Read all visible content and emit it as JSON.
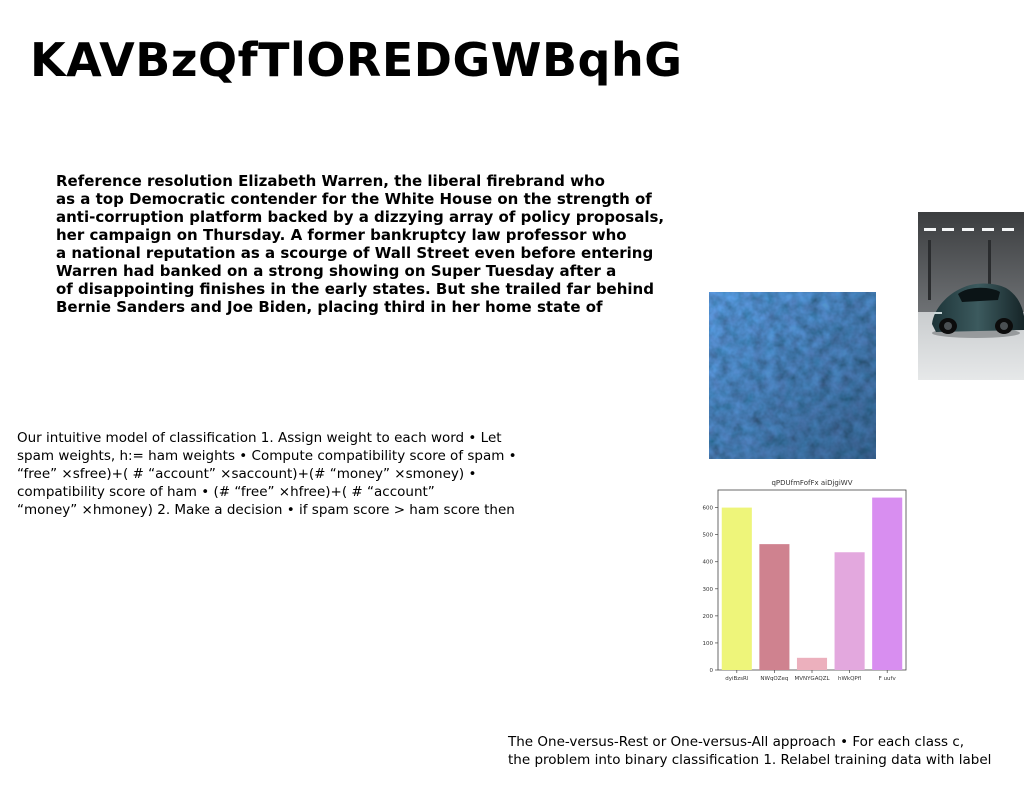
{
  "slide": {
    "title": "KAVBzQfTlOREDGWBqhG",
    "bold_paragraph": [
      "Reference resolution Elizabeth Warren, the liberal firebrand who",
      "as a top Democratic contender for the White House on the strength of",
      "anti-corruption platform backed by a dizzying array of policy proposals,",
      "her campaign on Thursday. A former bankruptcy law professor who",
      "a national reputation as a scourge of Wall Street even before entering",
      "Warren had banked on a strong showing on Super Tuesday after a",
      "of disappointing finishes in the early states. But she trailed far behind",
      "Bernie Sanders and Joe Biden, placing third in her home state of"
    ],
    "plain_paragraph": [
      "Our intuitive model of classification 1. Assign weight to each word • Let",
      "spam weights, h:= ham weights • Compute compatibility score of spam •",
      "“free” ×sfree)+( # “account” ×saccount)+(# “money” ×smoney) •",
      "compatibility score of ham • (# “free” ×hfree)+( # “account”",
      "“money” ×hmoney) 2. Make a decision • if spam score > ham score then"
    ],
    "bottom_paragraph": [
      "The One-versus-Rest or One-versus-All approach • For each class c,",
      "the problem into binary classification 1. Relabel training data with label"
    ]
  },
  "chart_data": {
    "type": "bar",
    "title": "qPDUfmFofFx aiDjgiWV",
    "categories": [
      "dyiBzsRl",
      "NWqOZeq",
      "MVNYGAQZL",
      "hWkQPfl",
      "F uufv"
    ],
    "values": [
      600,
      465,
      45,
      435,
      637
    ],
    "colors": [
      "#eef57a",
      "#cf828f",
      "#ecb0bd",
      "#e3a8de",
      "#d88ef0"
    ],
    "ylim": [
      0,
      665
    ],
    "yticks": [
      0,
      100,
      200,
      300,
      400,
      500,
      600
    ],
    "xlabel": "",
    "ylabel": "",
    "grid": false
  }
}
